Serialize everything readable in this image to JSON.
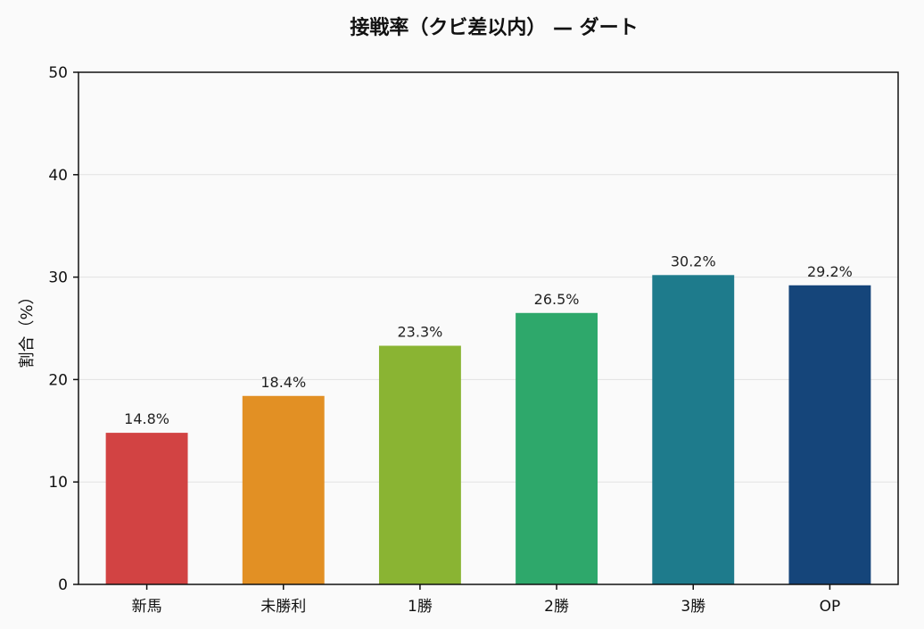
{
  "chart_data": {
    "type": "bar",
    "title": "接戦率（クビ差以内） — ダート",
    "xlabel": "",
    "ylabel": "割合（%）",
    "ylim": [
      0,
      50
    ],
    "yticks": [
      0,
      10,
      20,
      30,
      40,
      50
    ],
    "grid": "y",
    "legend": "none",
    "categories": [
      "新馬",
      "未勝利",
      "1勝",
      "2勝",
      "3勝",
      "OP"
    ],
    "values": [
      14.8,
      18.4,
      23.3,
      26.5,
      30.2,
      29.2
    ],
    "data_labels": [
      "14.8%",
      "18.4%",
      "23.3%",
      "26.5%",
      "30.2%",
      "29.2%"
    ],
    "colors": [
      "#d24343",
      "#e29024",
      "#8ab433",
      "#2ea86b",
      "#1e7b8c",
      "#15457a"
    ]
  }
}
